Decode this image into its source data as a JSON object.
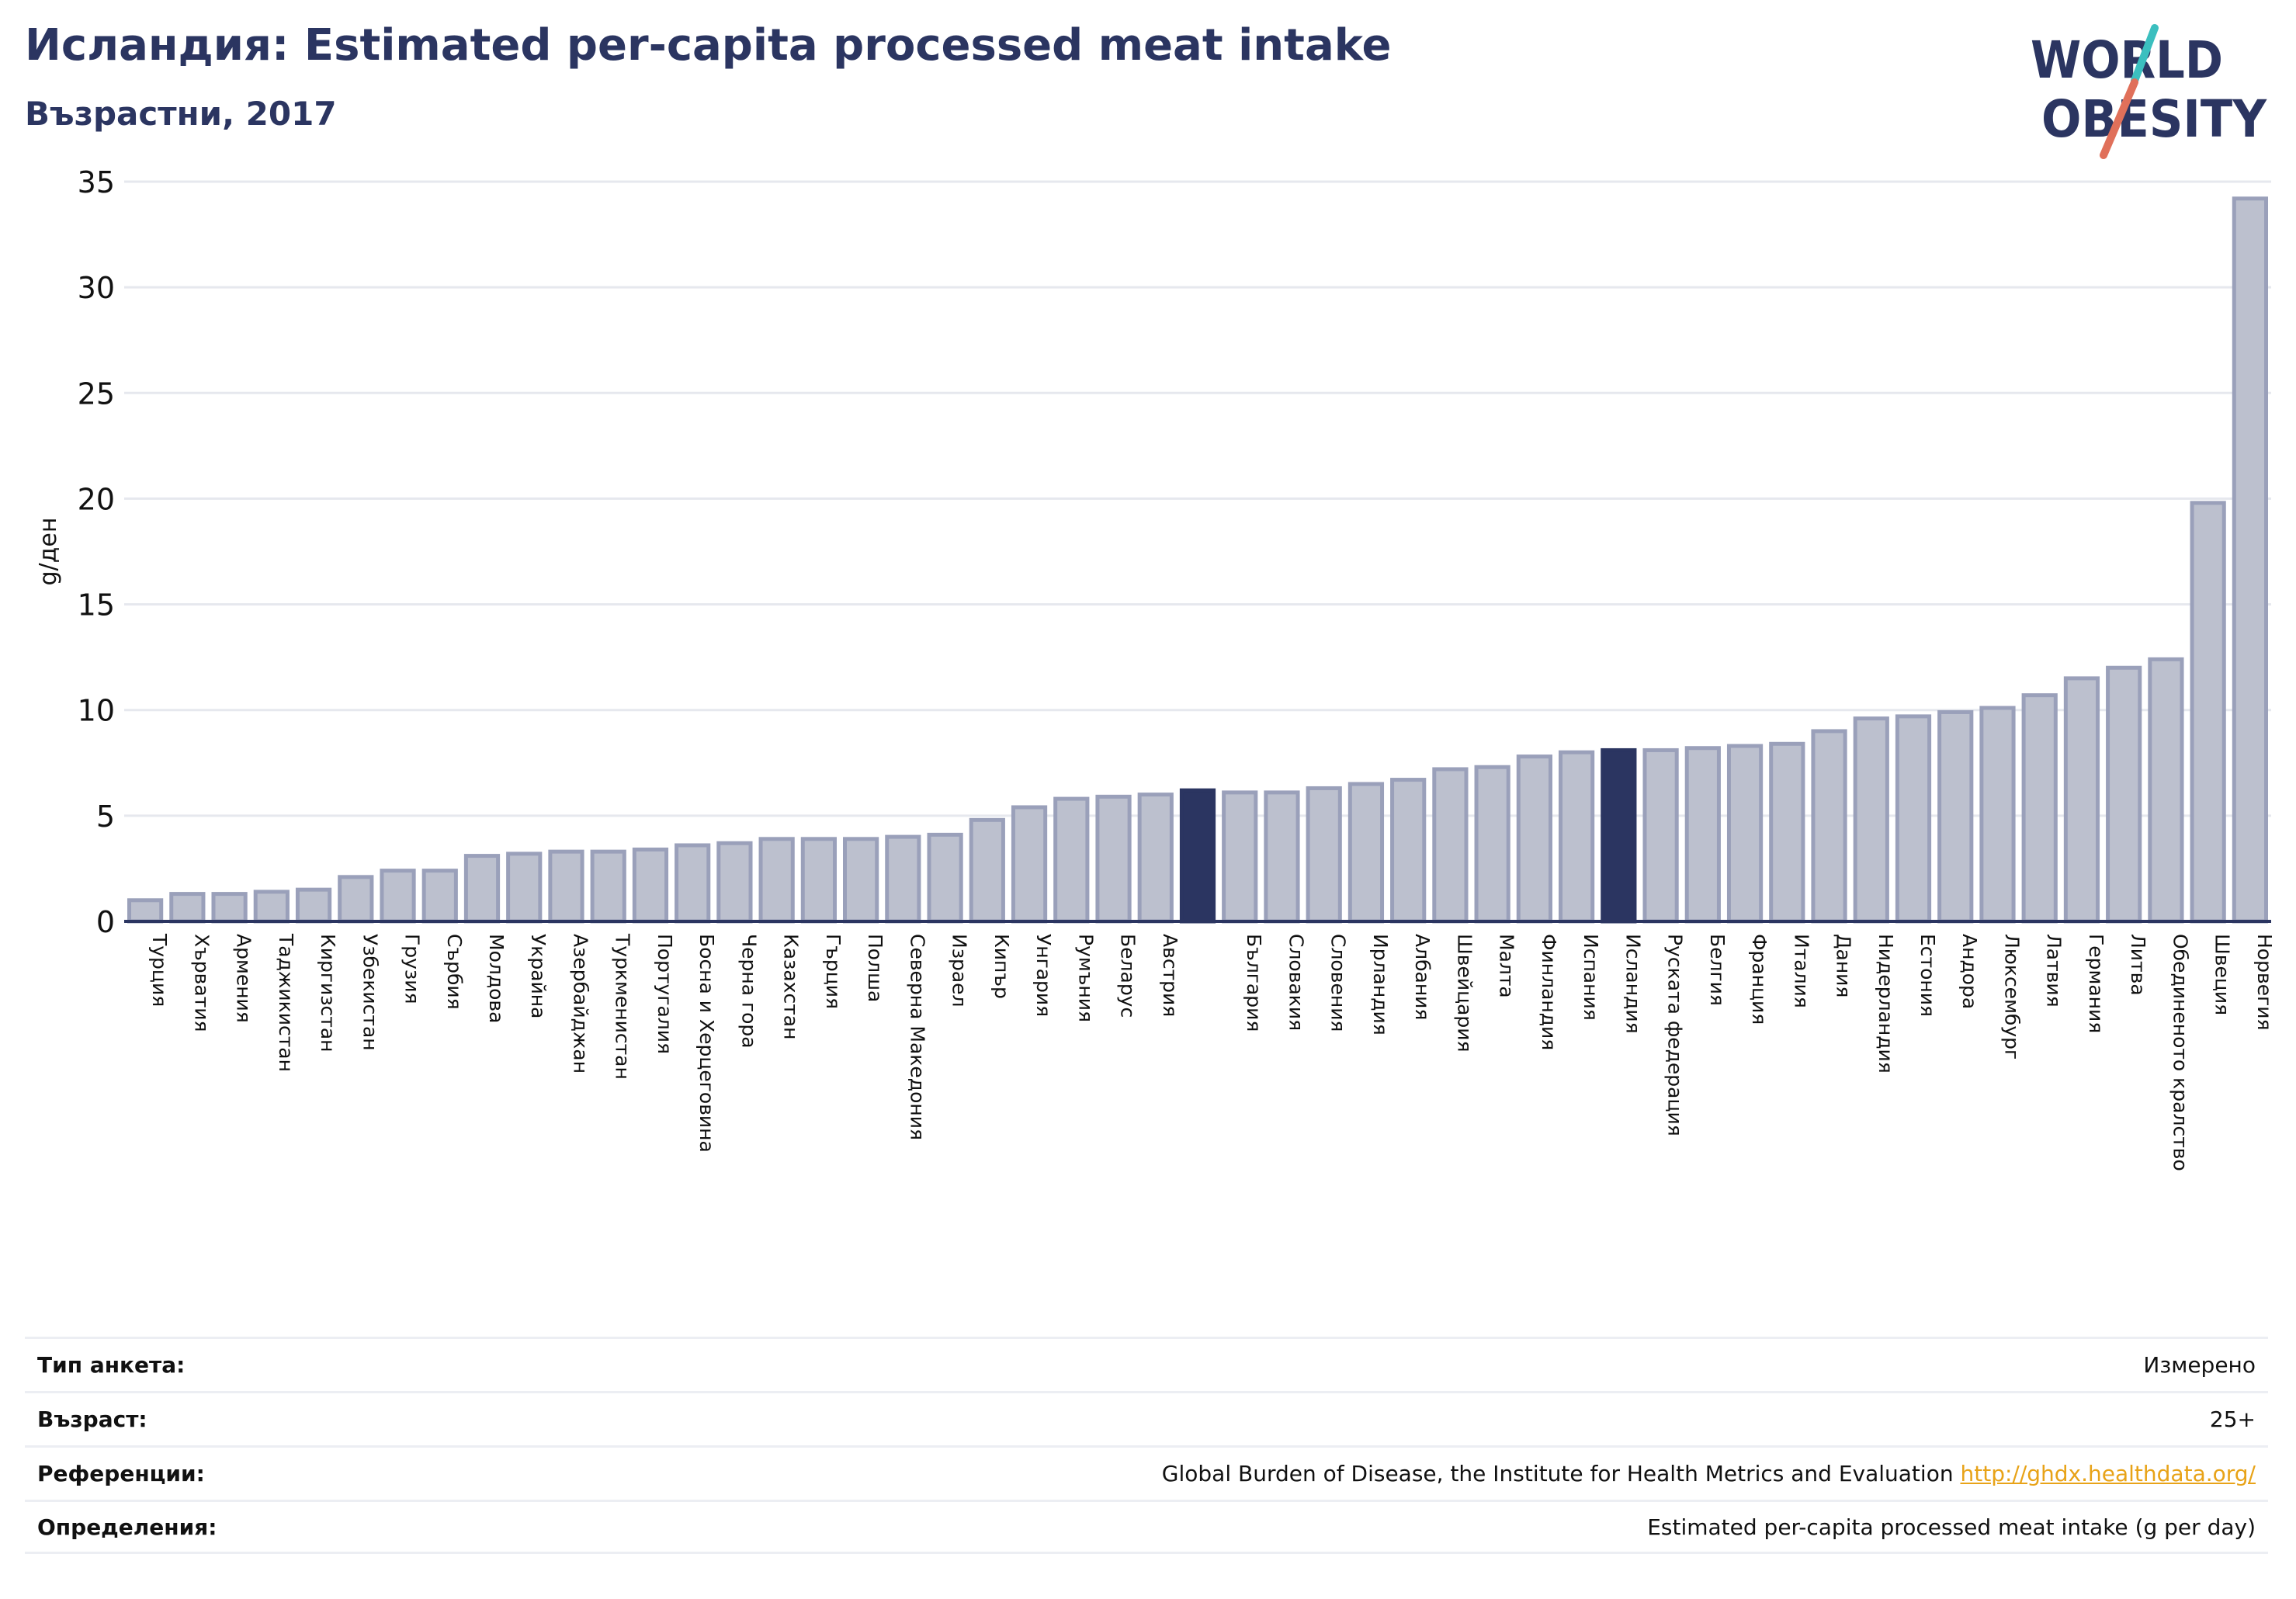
{
  "header": {
    "title": "Исландия: Estimated per-capita processed meat intake",
    "subtitle": "Възрастни, 2017"
  },
  "logo": {
    "line1": "WORLD",
    "line2": "OBESITY"
  },
  "colors": {
    "bar": "#bcc0ce",
    "bar_border": "#9aa0ba",
    "highlight": "#2b3561",
    "axis": "#2b3561",
    "grid": "#e6e8ee",
    "logo_text": "#2b3561",
    "logo_teal": "#3bbfbf",
    "logo_coral": "#e0705a",
    "link": "#e8a318"
  },
  "chart_data": {
    "type": "bar",
    "ylabel": "g/ден",
    "ylim": [
      0,
      35
    ],
    "yticks": [
      0,
      5,
      10,
      15,
      20,
      25,
      30,
      35
    ],
    "grid": true,
    "categories": [
      "Турция",
      "Хърватия",
      "Армения",
      "Таджикистан",
      "Киргизстан",
      "Узбекистан",
      "Грузия",
      "Сърбия",
      "Молдова",
      "Украйна",
      "Азербайджан",
      "Туркменистан",
      "Португалия",
      "Босна и Херцеговина",
      "Черна гора",
      "Казахстан",
      "Гърция",
      "Полша",
      "Северна Македония",
      "Израел",
      "Кипър",
      "Унгария",
      "Румъния",
      "Беларус",
      "Австрия",
      "",
      "България",
      "Словакия",
      "Словения",
      "Ирландия",
      "Албания",
      "Швейцария",
      "Малта",
      "Финландия",
      "Испания",
      "Исландия",
      "Руската федерация",
      "Белгия",
      "Франция",
      "Италия",
      "Дания",
      "Нидерландия",
      "Естония",
      "Андора",
      "Люксембург",
      "Латвия",
      "Германия",
      "Литва",
      "Обединеното кралство",
      "Швеция",
      "Норвегия"
    ],
    "values": [
      1.0,
      1.3,
      1.3,
      1.4,
      1.5,
      2.1,
      2.4,
      2.4,
      3.1,
      3.2,
      3.3,
      3.3,
      3.4,
      3.6,
      3.7,
      3.9,
      3.9,
      3.9,
      4.0,
      4.1,
      4.8,
      5.4,
      5.8,
      5.9,
      6.0,
      6.2,
      6.1,
      6.1,
      6.3,
      6.5,
      6.7,
      7.2,
      7.3,
      7.8,
      8.0,
      8.1,
      8.1,
      8.2,
      8.3,
      8.4,
      9.0,
      9.6,
      9.7,
      9.9,
      10.1,
      10.7,
      11.5,
      12.0,
      12.4,
      19.8,
      34.2
    ],
    "highlight": [
      "",
      "Исландия"
    ]
  },
  "info": {
    "rows": [
      {
        "key": "Тип анкета:",
        "value": "Измерено"
      },
      {
        "key": "Възраст:",
        "value": "25+"
      },
      {
        "key": "Референции:",
        "value": "Global Burden of Disease, the Institute for Health Metrics and Evaluation",
        "link": "http://ghdx.healthdata.org/"
      },
      {
        "key": "Определения:",
        "value": "Estimated per-capita processed meat intake (g per day)"
      }
    ]
  }
}
